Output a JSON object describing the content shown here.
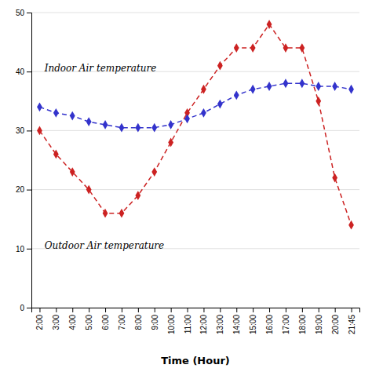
{
  "chart_data": {
    "type": "line",
    "categories": [
      "2:00",
      "3:00",
      "4:00",
      "5:00",
      "6:00",
      "7:00",
      "8:00",
      "9:00",
      "10:00",
      "11:00",
      "12:00",
      "13:00",
      "14:00",
      "15:00",
      "16:00",
      "17:00",
      "18:00",
      "19:00",
      "20:00",
      "21:45"
    ],
    "series": [
      {
        "name": "Outdoor Air temperature",
        "color": "#cc2222",
        "marker": "diamond",
        "line_style": "dashed",
        "values": [
          30,
          26,
          23,
          20,
          16,
          16,
          19,
          23,
          28,
          33,
          37,
          41,
          44,
          44,
          48,
          44,
          44,
          35,
          22,
          14
        ]
      },
      {
        "name": "Indoor Air temperature",
        "color": "#3333cc",
        "marker": "diamond",
        "line_style": "dashed",
        "values": [
          34,
          33,
          32.5,
          31.5,
          31,
          30.5,
          30.5,
          30.5,
          31,
          32,
          33,
          34.5,
          36,
          37,
          37.5,
          38,
          38,
          37.5,
          37.5,
          37
        ]
      }
    ],
    "xlabel": "Time (Hour)",
    "ylim": [
      0,
      50
    ],
    "yticks": [
      0,
      10,
      20,
      30,
      40,
      50
    ],
    "grid": true
  }
}
